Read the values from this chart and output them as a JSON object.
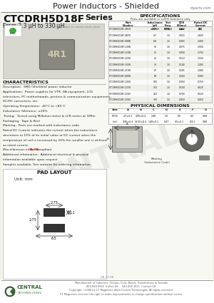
{
  "title_header": "Power Inductors - Shielded",
  "website": "ctparts.com",
  "series_name": "CTCDRH5D18F",
  "series_suffix": "Series",
  "subtitle": "From 3.3 μH to 330 μH",
  "bg_color": "#f5f5f0",
  "specs_title": "SPECIFICATIONS",
  "specs_note": "Parts are available in ±20% tolerance only",
  "specs_col_labels": [
    "Part\nNumber",
    "Inductance\n(μH ±20%)",
    "I_Test\nFreq.\n(MHz)",
    "DCR\n(Ohms)\nmax",
    "Rated DC\nCurrent\n(A)"
  ],
  "specs_rows": [
    [
      "CTCDRH5D18F-3R3N",
      "3.3",
      "1.0",
      "0.050",
      "3.1"
    ],
    [
      "CTCDRH5D18F-4R7N",
      "4.7",
      "1.0",
      "0.055",
      "2.800"
    ],
    [
      "CTCDRH5D18F-6R8N",
      "6.8",
      "1.0",
      "0.065",
      "2.400"
    ],
    [
      "CTCDRH5D18F-100N",
      "10",
      "1.0",
      "0.075",
      "2.000"
    ],
    [
      "CTCDRH5D18F-150N",
      "15",
      "1.0",
      "0.090",
      "1.700"
    ],
    [
      "CTCDRH5D18F-220N",
      "22",
      "1.0",
      "0.110",
      "1.500"
    ],
    [
      "CTCDRH5D18F-330N",
      "33",
      "1.0",
      "0.140",
      "1.280"
    ],
    [
      "CTCDRH5D18F-470N",
      "47",
      "1.0",
      "0.185",
      "1.080"
    ],
    [
      "CTCDRH5D18F-680N",
      "68",
      "1.0",
      "0.260",
      "0.900"
    ],
    [
      "CTCDRH5D18F-101N",
      "100",
      "1.0",
      "0.360",
      "0.750"
    ],
    [
      "CTCDRH5D18F-151N",
      "150",
      "1.0",
      "0.500",
      "0.620"
    ],
    [
      "CTCDRH5D18F-221N",
      "220",
      "1.0",
      "0.700",
      "0.520"
    ],
    [
      "CTCDRH5D18F-331N",
      "330",
      "1.0",
      "0.950",
      "0.450"
    ]
  ],
  "char_title": "CHARACTERISTICS",
  "char_text": [
    "Description:  SMD (shielded) power inductor",
    "Applications:  Power supplies for VTR, DA equipment, LCD",
    "televisions, PC motherboards, printers & communication equipments,",
    "DC/DC converters, etc.",
    "Operating Temperature: -40°C to +85°C",
    "Inductance Tolerance: ±20%",
    "Testing:  Tested using Milliohm meter & LCR meter at 1MHz",
    "Packaging:  Tape & Reel",
    "Marking:  Parts are marked with inductance code",
    "Rated DC Current indicates the current when the inductance",
    "decreases to 10% of its initial value or DC current when the",
    "temperature of coil is increased by 20% the smaller one is defined",
    "as rated current.",
    "Miscellaneous info:  RoHS Compliant",
    "Additional information:  Additional electrical & physical",
    "information available upon request.",
    "Samples available. See website for ordering information."
  ],
  "phys_title": "PHYSICAL DIMENSIONS",
  "phys_headers": [
    "Size",
    "A",
    "B",
    "C",
    "D",
    "E",
    "F",
    "G"
  ],
  "phys_rows": [
    [
      "5D18",
      "4.7±0.3",
      "4.95±0.4",
      "1.88",
      "2.0",
      "0.5",
      "6.5",
      "0.88"
    ],
    [
      "(ref.)",
      "4.95±0.4",
      "14.50±0.4",
      "1.48±0.1",
      "0.47",
      "0.5±0.1",
      "6.9.1",
      "0.88"
    ]
  ],
  "pad_title": "PAD LAYOUT",
  "pad_unit": "Unit: mm",
  "footer_text1": "Manufacturer of Inductors, Chokes, Coils, Beads, Transformers & Torroids",
  "footer_text2": "800-654-5922  Intl/ex-US     949-458-1811  Contact US",
  "footer_text3": "Copyright ©2008 by CT Magnetics d/b/a Central Technologies  All rights reserved.",
  "footer_text4": "CT Magnetics reserves the right to make improvements or change specifications without notice.",
  "doc_num": "0B 10 08",
  "text_color": "#222222",
  "rohs_color": "#cc0000"
}
